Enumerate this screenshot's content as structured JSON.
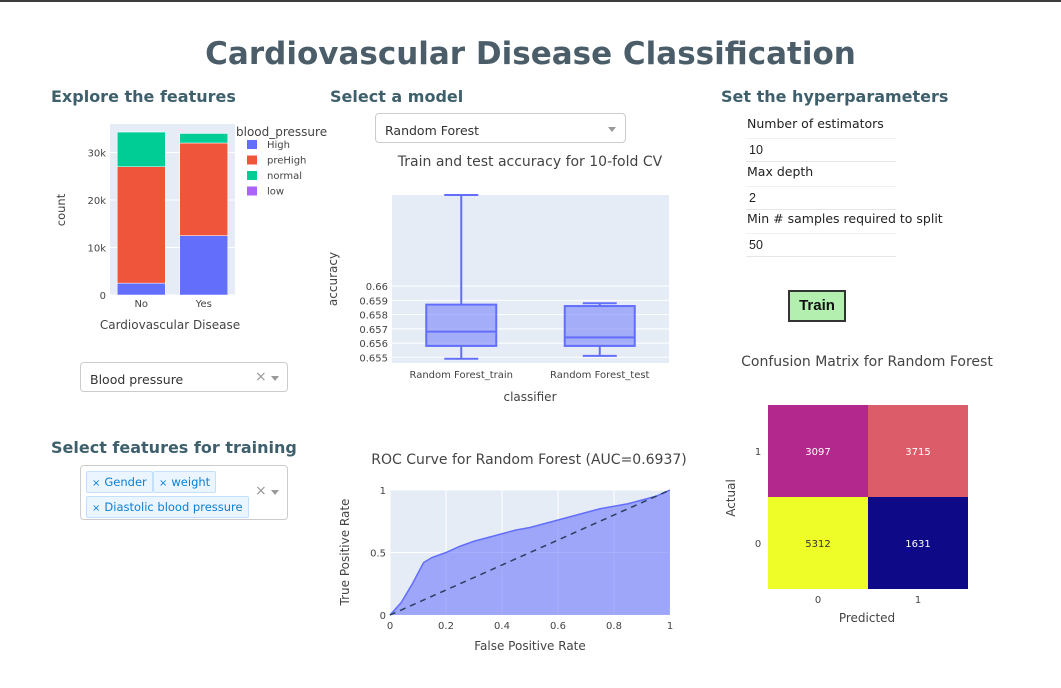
{
  "page_title": "Cardiovascular Disease Classification",
  "sections": {
    "explore": "Explore the features",
    "model": "Select a model",
    "hyper": "Set the hyperparameters",
    "features": "Select features for training"
  },
  "feature_dropdown": {
    "value": "Blood pressure"
  },
  "model_dropdown": {
    "value": "Random Forest"
  },
  "training_features": [
    "Gender",
    "weight",
    "Diastolic blood pressure"
  ],
  "hyperparameters": {
    "n_estimators_label": "Number of estimators",
    "n_estimators_value": "10",
    "max_depth_label": "Max depth",
    "max_depth_value": "2",
    "min_samples_label": "Min # samples required to split",
    "min_samples_value": "50"
  },
  "train_button": "Train",
  "chart_data": [
    {
      "type": "bar",
      "stacked": true,
      "categories": [
        "No",
        "Yes"
      ],
      "xlabel": "Cardiovascular Disease",
      "ylabel": "count",
      "ylim": [
        0,
        36000
      ],
      "yticks": [
        0,
        10000,
        20000,
        30000
      ],
      "ytick_labels": [
        "0",
        "10k",
        "20k",
        "30k"
      ],
      "legend_title": "blood_pressure",
      "legend_placement": "right",
      "series": [
        {
          "name": "High",
          "values": [
            2500,
            12500
          ],
          "color": "#636efa"
        },
        {
          "name": "preHigh",
          "values": [
            24500,
            19500
          ],
          "color": "#ef553b"
        },
        {
          "name": "normal",
          "values": [
            7300,
            2000
          ],
          "color": "#00cc96"
        },
        {
          "name": "low",
          "values": [
            0,
            0
          ],
          "color": "#ab63fa"
        }
      ]
    },
    {
      "type": "box",
      "title": "Train and test accuracy for 10-fold CV",
      "xlabel": "classifier",
      "ylabel": "accuracy",
      "ylim": [
        0.6546,
        0.6664
      ],
      "yticks": [
        0.655,
        0.656,
        0.657,
        0.658,
        0.659,
        0.66
      ],
      "ytick_labels": [
        "0.655",
        "0.656",
        "0.657",
        "0.658",
        "0.659",
        "0.66"
      ],
      "categories": [
        "Random Forest_train",
        "Random Forest_test"
      ],
      "boxes": [
        {
          "min": 0.6549,
          "q1": 0.6558,
          "median": 0.6568,
          "q3": 0.6587,
          "max": 0.6664
        },
        {
          "min": 0.6551,
          "q1": 0.6558,
          "median": 0.6564,
          "q3": 0.6586,
          "max": 0.6588
        }
      ],
      "color": "#636efa"
    },
    {
      "type": "area",
      "title": "ROC Curve for Random Forest (AUC=0.6937)",
      "xlabel": "False Positive Rate",
      "ylabel": "True Positive Rate",
      "xlim": [
        0,
        1
      ],
      "ylim": [
        0,
        1
      ],
      "xticks": [
        0,
        0.2,
        0.4,
        0.6,
        0.8,
        1
      ],
      "xtick_labels": [
        "0",
        "0.2",
        "0.4",
        "0.6",
        "0.8",
        "1"
      ],
      "yticks": [
        0,
        0.5,
        1
      ],
      "ytick_labels": [
        "0",
        "0.5",
        "1"
      ],
      "x": [
        0,
        0.04,
        0.08,
        0.12,
        0.15,
        0.2,
        0.25,
        0.3,
        0.35,
        0.4,
        0.45,
        0.5,
        0.55,
        0.6,
        0.65,
        0.7,
        0.75,
        0.8,
        0.85,
        0.9,
        0.95,
        1.0
      ],
      "y": [
        0,
        0.1,
        0.25,
        0.42,
        0.46,
        0.5,
        0.55,
        0.59,
        0.62,
        0.65,
        0.68,
        0.7,
        0.73,
        0.76,
        0.79,
        0.82,
        0.85,
        0.87,
        0.89,
        0.92,
        0.95,
        1.0
      ],
      "diagonal": true,
      "color": "#636efa"
    },
    {
      "type": "heatmap",
      "title": "Confusion Matrix for Random Forest",
      "xlabel": "Predicted",
      "ylabel": "Actual",
      "x_labels": [
        "0",
        "1"
      ],
      "y_labels": [
        "1",
        "0"
      ],
      "cells": [
        [
          {
            "value": 3097,
            "color": "#b2288d"
          },
          {
            "value": 3715,
            "color": "#dc5c6a"
          }
        ],
        [
          {
            "value": 5312,
            "color": "#eefc27"
          },
          {
            "value": 1631,
            "color": "#0d0987"
          }
        ]
      ]
    }
  ]
}
